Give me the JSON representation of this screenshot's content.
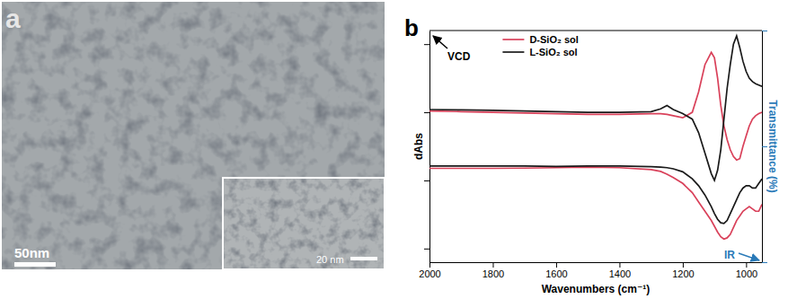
{
  "image_panel": {
    "panel_label": "a",
    "scale_bar": "50nm",
    "inset_scale_bar": "20 nm"
  },
  "chart_data": {
    "type": "line",
    "panel_label": "b",
    "xlabel": "Wavenumbers (cm⁻¹)",
    "ylabel": "dAbs",
    "y2label": "Transmittance (%)",
    "annotations": [
      "VCD",
      "IR"
    ],
    "x": [
      2000,
      1900,
      1800,
      1700,
      1600,
      1500,
      1400,
      1300,
      1270,
      1250,
      1230,
      1200,
      1170,
      1150,
      1130,
      1110,
      1100,
      1090,
      1080,
      1070,
      1060,
      1050,
      1040,
      1030,
      1020,
      1010,
      1000,
      990,
      980,
      970,
      960,
      950
    ],
    "xlim": [
      2000,
      950
    ],
    "xticks": [
      2000,
      1800,
      1600,
      1400,
      1200,
      1000
    ],
    "ylim": [
      -2.2,
      1.2
    ],
    "yticks": [
      -2,
      -1,
      0,
      1
    ],
    "y2lim": [
      0,
      100
    ],
    "y2ticks": [
      0,
      50,
      100
    ],
    "tick_labels": "x",
    "legend": "top",
    "series": [
      {
        "name": "D-SiO₂ sol",
        "color": "#d9415a",
        "values": [
          0.02,
          0.01,
          0,
          -0.01,
          -0.02,
          -0.03,
          -0.03,
          -0.02,
          -0.02,
          -0.03,
          -0.05,
          -0.08,
          0,
          0.3,
          0.7,
          0.88,
          0.8,
          0.5,
          0.1,
          -0.2,
          -0.4,
          -0.55,
          -0.65,
          -0.7,
          -0.68,
          -0.5,
          -0.35,
          -0.2,
          -0.1,
          -0.05,
          -0.02,
          0
        ]
      },
      {
        "name": "L-SiO₂ sol",
        "color": "#1a1a1a",
        "values": [
          0.04,
          0.035,
          0.03,
          0.02,
          0.01,
          0,
          0,
          0.01,
          0.05,
          0.1,
          0.04,
          -0.02,
          -0.1,
          -0.3,
          -0.6,
          -0.9,
          -1.0,
          -0.85,
          -0.55,
          -0.1,
          0.35,
          0.7,
          1.0,
          1.12,
          0.95,
          0.75,
          0.6,
          0.5,
          0.45,
          0.42,
          0.4,
          0.38
        ]
      },
      {
        "name": "D-SiO₂ sol",
        "color": "#d9415a",
        "axis": "y2",
        "values": [
          40.5,
          40.5,
          40.5,
          40.6,
          40.8,
          41,
          40.8,
          40,
          39.2,
          38,
          36.5,
          34,
          30,
          26,
          22,
          18,
          15.5,
          13,
          11,
          10,
          10.5,
          12,
          15,
          18,
          20,
          22,
          23,
          24,
          23,
          22,
          22,
          25
        ]
      },
      {
        "name": "L-SiO₂ sol",
        "color": "#1a1a1a",
        "axis": "y2",
        "values": [
          41.5,
          41.5,
          41.5,
          41.5,
          41.3,
          41.5,
          41.5,
          41.2,
          41,
          40.8,
          40.3,
          39,
          36,
          33,
          29,
          24,
          21,
          18.5,
          17,
          16.7,
          18,
          21,
          24,
          27,
          30,
          32,
          33,
          33,
          32,
          32,
          34,
          36
        ]
      }
    ]
  }
}
